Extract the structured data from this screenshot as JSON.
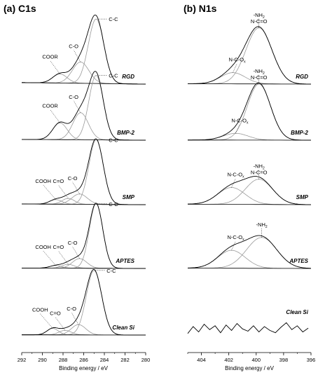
{
  "chart_data": [
    {
      "type": "line",
      "title": "(a) C1s",
      "xlabel": "Binding energy / eV",
      "xlim": [
        292,
        280
      ],
      "x_reversed": true,
      "ticks": [
        292,
        290,
        288,
        286,
        284,
        282,
        280
      ],
      "grid": false,
      "series": [
        {
          "name": "RGD",
          "baseline": 0.4,
          "components": [
            {
              "center": 284.8,
              "height": 1.0,
              "sigma": 0.75
            },
            {
              "center": 286.3,
              "height": 0.33,
              "sigma": 0.8
            },
            {
              "center": 288.3,
              "height": 0.14,
              "sigma": 0.7
            }
          ],
          "peak_labels": [
            {
              "text": "C-C",
              "x": 284.8
            },
            {
              "text": "C-O",
              "x": 286.3
            },
            {
              "text": "COOR",
              "x": 288.3
            }
          ]
        },
        {
          "name": "BMP-2",
          "baseline": 0.2,
          "components": [
            {
              "center": 284.8,
              "height": 1.0,
              "sigma": 0.7
            },
            {
              "center": 286.3,
              "height": 0.42,
              "sigma": 0.75
            },
            {
              "center": 288.3,
              "height": 0.26,
              "sigma": 0.7
            }
          ],
          "peak_labels": [
            {
              "text": "C-C",
              "x": 284.8
            },
            {
              "text": "C-O",
              "x": 286.3
            },
            {
              "text": "COOR",
              "x": 288.3
            }
          ]
        },
        {
          "name": "SMP",
          "baseline": 0.18,
          "components": [
            {
              "center": 284.8,
              "height": 1.0,
              "sigma": 0.7
            },
            {
              "center": 286.4,
              "height": 0.16,
              "sigma": 0.75
            },
            {
              "center": 287.5,
              "height": 0.09,
              "sigma": 0.6
            },
            {
              "center": 288.7,
              "height": 0.07,
              "sigma": 0.6
            }
          ],
          "peak_labels": [
            {
              "text": "C-C",
              "x": 284.8
            },
            {
              "text": "C-O",
              "x": 286.4
            },
            {
              "text": "C=O",
              "x": 287.5
            },
            {
              "text": "COOH",
              "x": 288.7
            }
          ]
        },
        {
          "name": "APTES",
          "baseline": 0.1,
          "components": [
            {
              "center": 284.8,
              "height": 1.0,
              "sigma": 0.65
            },
            {
              "center": 286.4,
              "height": 0.15,
              "sigma": 0.7
            },
            {
              "center": 287.5,
              "height": 0.06,
              "sigma": 0.6
            },
            {
              "center": 288.7,
              "height": 0.04,
              "sigma": 0.6
            }
          ],
          "peak_labels": [
            {
              "text": "C-C",
              "x": 284.8
            },
            {
              "text": "C-O",
              "x": 286.4
            },
            {
              "text": "C=O",
              "x": 287.5
            },
            {
              "text": "COOH",
              "x": 288.7
            }
          ]
        },
        {
          "name": "Clean Si",
          "baseline": 0.06,
          "components": [
            {
              "center": 285.0,
              "height": 1.0,
              "sigma": 0.75
            },
            {
              "center": 286.5,
              "height": 0.16,
              "sigma": 0.7
            },
            {
              "center": 287.8,
              "height": 0.07,
              "sigma": 0.6
            },
            {
              "center": 289.0,
              "height": 0.1,
              "sigma": 0.55
            }
          ],
          "peak_labels": [
            {
              "text": "C-C",
              "x": 285.0
            },
            {
              "text": "C-O",
              "x": 286.5
            },
            {
              "text": "C=O",
              "x": 287.8
            },
            {
              "text": "COOH",
              "x": 289.0
            }
          ]
        }
      ]
    },
    {
      "type": "line",
      "title": "(b) N1s",
      "xlabel": "Binding energy / eV",
      "xlim": [
        405,
        396
      ],
      "x_reversed": true,
      "ticks": [
        404,
        402,
        400,
        398,
        396
      ],
      "grid": false,
      "series": [
        {
          "name": "RGD",
          "baseline": 0.12,
          "components": [
            {
              "center": 399.8,
              "height": 1.0,
              "sigma": 0.95
            },
            {
              "center": 401.7,
              "height": 0.2,
              "sigma": 0.9
            }
          ],
          "peak_labels": [
            {
              "text": "N-C-O",
              "sub": "x",
              "x": 401.7
            },
            {
              "text": "-NH",
              "sub": "2",
              "line2": "N-C=O",
              "x": 399.8
            }
          ]
        },
        {
          "name": "BMP-2",
          "baseline": 0.05,
          "components": [
            {
              "center": 399.8,
              "height": 1.0,
              "sigma": 0.85
            },
            {
              "center": 401.5,
              "height": 0.12,
              "sigma": 0.9
            }
          ],
          "peak_labels": [
            {
              "text": "N-C-O",
              "sub": "x",
              "x": 401.5
            },
            {
              "text": "-NH",
              "sub": "2",
              "line2": "N-C=O",
              "x": 399.8
            }
          ]
        },
        {
          "name": "SMP",
          "baseline": 0.15,
          "components": [
            {
              "center": 399.8,
              "height": 0.45,
              "sigma": 1.0
            },
            {
              "center": 401.8,
              "height": 0.3,
              "sigma": 1.0
            }
          ],
          "peak_labels": [
            {
              "text": "N-C-O",
              "sub": "x",
              "x": 401.8
            },
            {
              "text": "-NH",
              "sub": "2",
              "line2": "N-C=O",
              "x": 399.8
            }
          ]
        },
        {
          "name": "APTES",
          "baseline": 0.1,
          "components": [
            {
              "center": 399.6,
              "height": 0.55,
              "sigma": 1.1
            },
            {
              "center": 401.8,
              "height": 0.32,
              "sigma": 1.0
            }
          ],
          "peak_labels": [
            {
              "text": "N-C-O",
              "sub": "x",
              "x": 401.8
            },
            {
              "text": "-NH",
              "sub": "2",
              "x": 399.6
            }
          ]
        },
        {
          "name": "Clean Si",
          "noise": true,
          "baseline": 0.3,
          "x": [
            405,
            404.6,
            404.2,
            403.8,
            403.4,
            403.0,
            402.6,
            402.2,
            401.8,
            401.4,
            401.0,
            400.6,
            400.2,
            399.8,
            399.4,
            399.0,
            398.6,
            398.2,
            397.8,
            397.4,
            397.0,
            396.6,
            396.2
          ],
          "values": [
            0.1,
            0.55,
            0.2,
            0.7,
            0.35,
            0.6,
            0.15,
            0.65,
            0.3,
            0.75,
            0.4,
            0.25,
            0.6,
            0.2,
            0.55,
            0.3,
            0.15,
            0.5,
            0.8,
            0.35,
            0.6,
            0.2,
            0.45
          ],
          "peak_labels": []
        }
      ]
    }
  ]
}
